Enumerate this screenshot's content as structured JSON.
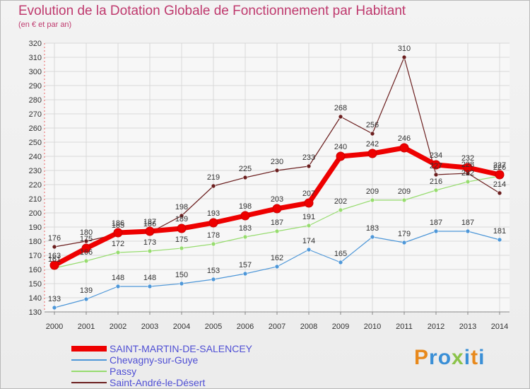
{
  "header": {
    "title": "Evolution de la Dotation Globale de Fonctionnement par Habitant",
    "subtitle": "(en € et par an)"
  },
  "brand": {
    "letters": [
      "P",
      "r",
      "o",
      "x",
      "i",
      "t",
      "i"
    ],
    "colors": [
      "#e8891c",
      "#3a8fd6",
      "#3a8fd6",
      "#8bc34a",
      "#3a8fd6",
      "#e8891c",
      "#3a8fd6"
    ]
  },
  "chart_data": {
    "type": "line",
    "title": "Evolution de la Dotation Globale de Fonctionnement par Habitant",
    "subtitle": "(en € et par an)",
    "x": [
      "2000",
      "2001",
      "2002",
      "2003",
      "2004",
      "2005",
      "2006",
      "2007",
      "2008",
      "2009",
      "2010",
      "2011",
      "2012",
      "2013",
      "2014"
    ],
    "ylim": [
      130,
      320
    ],
    "yticks": [
      130,
      140,
      150,
      160,
      170,
      180,
      190,
      200,
      210,
      220,
      230,
      240,
      250,
      260,
      270,
      280,
      290,
      300,
      310,
      320
    ],
    "grid": true,
    "legend_position": "bottom-left",
    "series": [
      {
        "name": "SAINT-MARTIN-DE-SALENCEY",
        "color": "#ee0000",
        "values": [
          163,
          175,
          186,
          187,
          189,
          193,
          198,
          203,
          207,
          240,
          242,
          246,
          234,
          232,
          227
        ],
        "labels": [
          "163",
          "175",
          "186",
          "187",
          "189",
          "193",
          "198",
          "203",
          "207",
          "240",
          "242",
          "246",
          "234",
          "232",
          "227"
        ]
      },
      {
        "name": "Chevagny-sur-Guye",
        "color": "#4e97d8",
        "values": [
          133,
          139,
          148,
          148,
          150,
          153,
          157,
          162,
          174,
          165,
          183,
          179,
          187,
          187,
          181
        ],
        "labels": [
          "133",
          "139",
          "148",
          "148",
          "150",
          "153",
          "157",
          "162",
          "174",
          "165",
          "183",
          "179",
          "187",
          "187",
          "181"
        ]
      },
      {
        "name": "Passy",
        "color": "#97dc6f",
        "values": [
          161,
          166,
          172,
          173,
          175,
          178,
          183,
          187,
          191,
          202,
          209,
          209,
          216,
          222,
          226
        ],
        "labels": [
          "161",
          "166",
          "172",
          "173",
          "175",
          "178",
          "183",
          "187",
          "191",
          "202",
          "209",
          "209",
          "216",
          "222",
          "226"
        ]
      },
      {
        "name": "Saint-André-le-Désert",
        "color": "#6b1f1f",
        "values": [
          176,
          180,
          185,
          186,
          198,
          219,
          225,
          230,
          233,
          268,
          256,
          310,
          227,
          228,
          214
        ],
        "labels": [
          "176",
          "180",
          "185",
          "186",
          "198",
          "219",
          "225",
          "230",
          "233",
          "268",
          "256",
          "310",
          "227",
          "228",
          "214"
        ]
      }
    ]
  }
}
